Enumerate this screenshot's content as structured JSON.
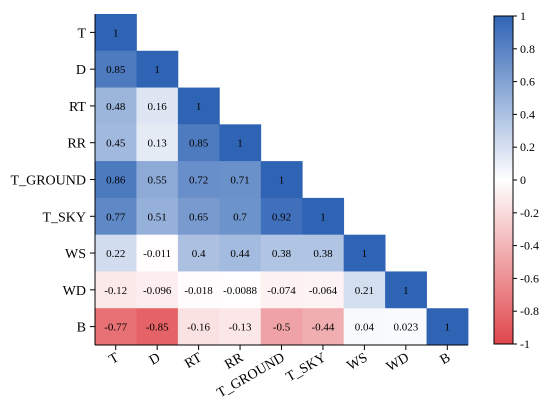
{
  "chart_data": {
    "type": "heatmap",
    "title": "",
    "xlabel": "",
    "ylabel": "",
    "variables": [
      "T",
      "D",
      "RT",
      "RR",
      "T_GROUND",
      "T_SKY",
      "WS",
      "WD",
      "B"
    ],
    "matrix": [
      [
        1
      ],
      [
        0.85,
        1
      ],
      [
        0.48,
        0.16,
        1
      ],
      [
        0.45,
        0.13,
        0.85,
        1
      ],
      [
        0.86,
        0.55,
        0.72,
        0.71,
        1
      ],
      [
        0.77,
        0.51,
        0.65,
        0.7,
        0.92,
        1
      ],
      [
        0.22,
        -0.011,
        0.4,
        0.44,
        0.38,
        0.38,
        1
      ],
      [
        -0.12,
        -0.096,
        -0.018,
        -0.0088,
        -0.074,
        -0.064,
        0.21,
        1
      ],
      [
        -0.77,
        -0.85,
        -0.16,
        -0.13,
        -0.5,
        -0.44,
        0.04,
        0.023,
        1
      ]
    ],
    "labels": [
      [
        "1"
      ],
      [
        "0.85",
        "1"
      ],
      [
        "0.48",
        "0.16",
        "1"
      ],
      [
        "0.45",
        "0.13",
        "0.85",
        "1"
      ],
      [
        "0.86",
        "0.55",
        "0.72",
        "0.71",
        "1"
      ],
      [
        "0.77",
        "0.51",
        "0.65",
        "0.7",
        "0.92",
        "1"
      ],
      [
        "0.22",
        "-0.011",
        "0.4",
        "0.44",
        "0.38",
        "0.38",
        "1"
      ],
      [
        "-0.12",
        "-0.096",
        "-0.018",
        "-0.0088",
        "-0.074",
        "-0.064",
        "0.21",
        "1"
      ],
      [
        "-0.77",
        "-0.85",
        "-0.16",
        "-0.13",
        "-0.5",
        "-0.44",
        "0.04",
        "0.023",
        "1"
      ]
    ],
    "colorbar": {
      "range": [
        -1,
        1
      ],
      "ticks": [
        "1",
        "0.8",
        "0.6",
        "0.4",
        "0.2",
        "0",
        "-0.2",
        "-0.4",
        "-0.6",
        "-0.8",
        "-1"
      ],
      "low_color": "#e0474c",
      "mid_color": "#ffffff",
      "high_color": "#2f64b5"
    },
    "triangle": "lower",
    "grid": false
  }
}
